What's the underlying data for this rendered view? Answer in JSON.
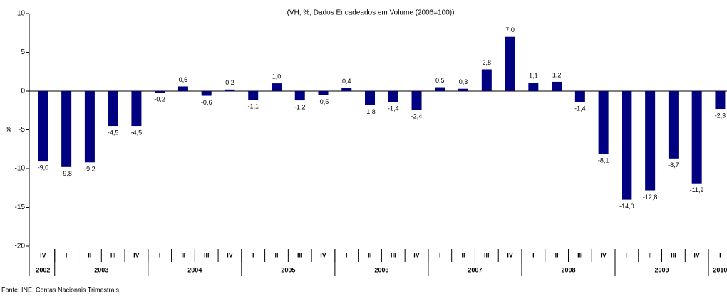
{
  "chart_data": {
    "type": "bar",
    "title": "(VH, %, Dados Encadeados em Volume (2006=100))",
    "y_label": "%",
    "source": "Fonte: INE, Contas Nacionais Trimestrais",
    "categories": [
      "IV",
      "I",
      "II",
      "III",
      "IV",
      "I",
      "II",
      "III",
      "IV",
      "I",
      "II",
      "III",
      "IV",
      "I",
      "II",
      "III",
      "IV",
      "I",
      "II",
      "III",
      "IV",
      "I",
      "II",
      "III",
      "IV",
      "I",
      "II",
      "III",
      "IV",
      "I"
    ],
    "groups": [
      {
        "label": "2002",
        "size": 1
      },
      {
        "label": "2003",
        "size": 4
      },
      {
        "label": "2004",
        "size": 4
      },
      {
        "label": "2005",
        "size": 4
      },
      {
        "label": "2006",
        "size": 4
      },
      {
        "label": "2007",
        "size": 4
      },
      {
        "label": "2008",
        "size": 4
      },
      {
        "label": "2009",
        "size": 4
      },
      {
        "label": "2010",
        "size": 1
      }
    ],
    "values": [
      -9.0,
      -9.8,
      -9.2,
      -4.5,
      -4.5,
      -0.2,
      0.6,
      -0.6,
      0.2,
      -1.1,
      1.0,
      -1.2,
      -0.5,
      0.4,
      -1.8,
      -1.4,
      -2.4,
      0.5,
      0.3,
      2.8,
      7.0,
      1.1,
      1.2,
      -1.4,
      -8.1,
      -14.0,
      -12.8,
      -8.7,
      -11.9,
      -2.3
    ],
    "value_labels": [
      "-9,0",
      "-9,8",
      "-9,2",
      "-4,5",
      "-4,5",
      "-0,2",
      "0,6",
      "-0,6",
      "0,2",
      "-1,1",
      "1,0",
      "-1,2",
      "-0,5",
      "0,4",
      "-1,8",
      "-1,4",
      "-2,4",
      "0,5",
      "0,3",
      "2,8",
      "7,0",
      "1,1",
      "1,2",
      "-1,4",
      "-8,1",
      "-14,0",
      "-12,8",
      "-8,7",
      "-11,9",
      "-2,3"
    ],
    "color": "#000080",
    "ylim": [
      -20,
      10
    ],
    "yticks": [
      -20,
      -15,
      -10,
      -5,
      0,
      5,
      10
    ]
  }
}
